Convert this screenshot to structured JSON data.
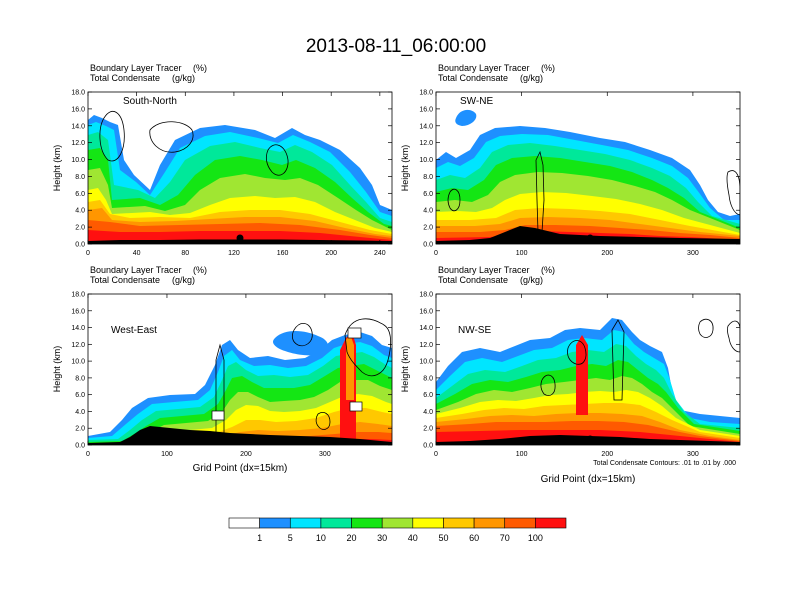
{
  "figure": {
    "title": "2013-08-11_06:00:00",
    "contour_note": "Total Condensate Contours: .01 to .01 by .000"
  },
  "colorbar": {
    "labels": [
      "1",
      "5",
      "10",
      "20",
      "30",
      "40",
      "50",
      "60",
      "70",
      "100"
    ],
    "colors": [
      "#ffffff",
      "#1e90ff",
      "#00e5ff",
      "#00e89a",
      "#14e614",
      "#a0e632",
      "#ffff00",
      "#ffc800",
      "#ff9600",
      "#ff5a00",
      "#ff1010"
    ]
  },
  "chart_data": [
    {
      "type": "heatmap",
      "var_left": "Boundary Layer Tracer",
      "unit_left": "(%)",
      "var_left2": "Total Condensate",
      "unit_left2": "(g/kg)",
      "panel_label": "South-North",
      "ylabel": "Height (km)",
      "xlabel": "",
      "xlim": [
        0,
        250
      ],
      "ylim": [
        0,
        18
      ],
      "xticks": [
        "0",
        "40",
        "80",
        "120",
        "160",
        "200",
        "240"
      ],
      "yticks": [
        "0.0",
        "2.0",
        "4.0",
        "6.0",
        "8.0",
        "10.0",
        "12.0",
        "14.0",
        "16.0",
        "18.0"
      ],
      "marker_x": 125
    },
    {
      "type": "heatmap",
      "var_left": "Boundary Layer Tracer",
      "unit_left": "(%)",
      "var_left2": "Total Condensate",
      "unit_left2": "(g/kg)",
      "panel_label": "SW-NE",
      "ylabel": "Height (km)",
      "xlabel": "",
      "xlim": [
        0,
        355
      ],
      "ylim": [
        0,
        18
      ],
      "xticks": [
        "0",
        "100",
        "200",
        "300"
      ],
      "yticks": [
        "0.0",
        "2.0",
        "4.0",
        "6.0",
        "8.0",
        "10.0",
        "12.0",
        "14.0",
        "16.0",
        "18.0"
      ],
      "marker_x": 180
    },
    {
      "type": "heatmap",
      "var_left": "Boundary Layer Tracer",
      "unit_left": "(%)",
      "var_left2": "Total Condensate",
      "unit_left2": "(g/kg)",
      "panel_label": "West-East",
      "ylabel": "Height (km)",
      "xlabel": "Grid Point (dx=15km)",
      "xlim": [
        0,
        385
      ],
      "ylim": [
        0,
        18
      ],
      "xticks": [
        "0",
        "100",
        "200",
        "300"
      ],
      "yticks": [
        "0.0",
        "2.0",
        "4.0",
        "6.0",
        "8.0",
        "10.0",
        "12.0",
        "14.0",
        "16.0",
        "18.0"
      ],
      "marker_x": 195
    },
    {
      "type": "heatmap",
      "var_left": "Boundary Layer Tracer",
      "unit_left": "(%)",
      "var_left2": "Total Condensate",
      "unit_left2": "(g/kg)",
      "panel_label": "NW-SE",
      "ylabel": "Height (km)",
      "xlabel": "Grid Point (dx=15km)",
      "xlim": [
        0,
        355
      ],
      "ylim": [
        0,
        18
      ],
      "xticks": [
        "0",
        "100",
        "200",
        "300"
      ],
      "yticks": [
        "0.0",
        "2.0",
        "4.0",
        "6.0",
        "8.0",
        "10.0",
        "12.0",
        "14.0",
        "16.0",
        "18.0"
      ],
      "marker_x": 180
    }
  ]
}
